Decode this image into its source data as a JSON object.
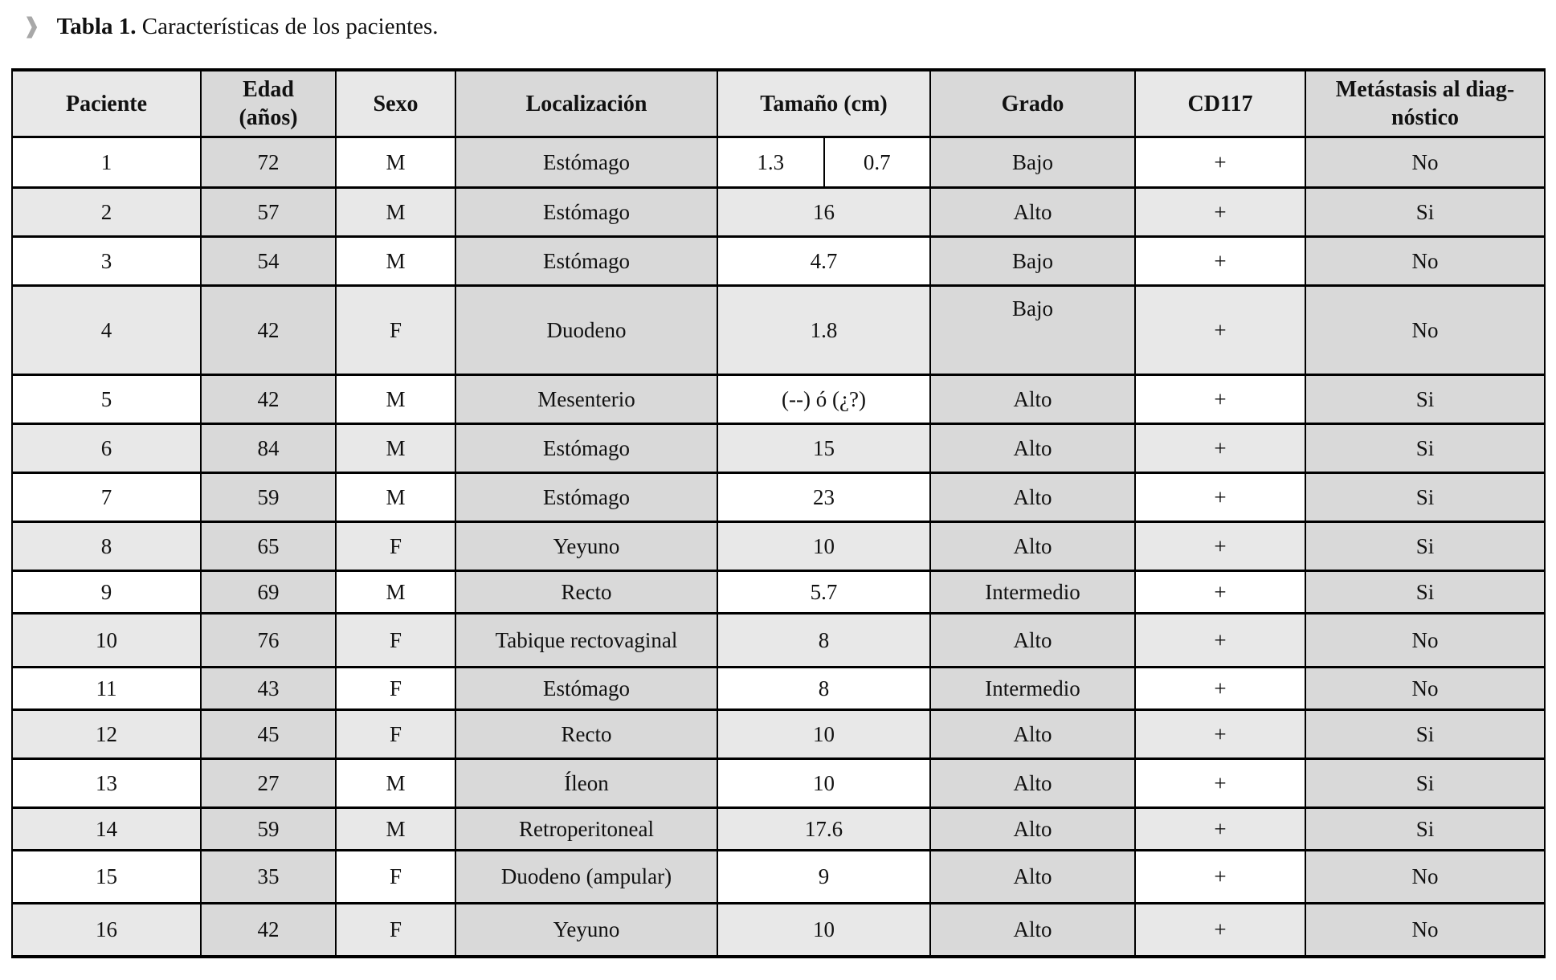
{
  "caption": {
    "marker_icon": "❱",
    "bold": "Tabla 1.",
    "text": "Características de los pacientes."
  },
  "colors": {
    "shaded_column": "#d9d9d9",
    "alt_row": "#e8e8e8",
    "plain_row": "#ffffff",
    "border": "#000000",
    "caption_marker": "#a8a8a8"
  },
  "table": {
    "headers": [
      {
        "key": "paciente",
        "lines": [
          "Paciente"
        ]
      },
      {
        "key": "edad",
        "lines": [
          "Edad",
          "(años)"
        ]
      },
      {
        "key": "sexo",
        "lines": [
          "Sexo"
        ]
      },
      {
        "key": "localizacion",
        "lines": [
          "Localización"
        ]
      },
      {
        "key": "tamano",
        "lines": [
          "Tamaño (cm)"
        ]
      },
      {
        "key": "grado",
        "lines": [
          "Grado"
        ]
      },
      {
        "key": "cd117",
        "lines": [
          "CD117"
        ]
      },
      {
        "key": "metastasis",
        "lines": [
          "Metástasis al diag-",
          "nóstico"
        ]
      }
    ],
    "rows": [
      {
        "paciente": "1",
        "edad": "72",
        "sexo": "M",
        "localizacion": "Estómago",
        "tamano_split": [
          "1.3",
          "0.7"
        ],
        "grado": "Bajo",
        "cd117": "+",
        "metastasis": "No"
      },
      {
        "paciente": "2",
        "edad": "57",
        "sexo": "M",
        "localizacion": "Estómago",
        "tamano": "16",
        "grado": "Alto",
        "cd117": "+",
        "metastasis": "Si"
      },
      {
        "paciente": "3",
        "edad": "54",
        "sexo": "M",
        "localizacion": "Estómago",
        "tamano": "4.7",
        "grado": "Bajo",
        "cd117": "+",
        "metastasis": "No"
      },
      {
        "paciente": "4",
        "edad": "42",
        "sexo": "F",
        "localizacion": "Duodeno",
        "tamano": "1.8",
        "grado": "Bajo",
        "grado_valign": "top",
        "cd117": "+",
        "metastasis": "No"
      },
      {
        "paciente": "5",
        "edad": "42",
        "sexo": "M",
        "localizacion": "Mesenterio",
        "tamano": "(--) ó (¿?)",
        "grado": "Alto",
        "cd117": "+",
        "metastasis": "Si"
      },
      {
        "paciente": "6",
        "edad": "84",
        "sexo": "M",
        "localizacion": "Estómago",
        "tamano": "15",
        "grado": "Alto",
        "cd117": "+",
        "metastasis": "Si"
      },
      {
        "paciente": "7",
        "edad": "59",
        "sexo": "M",
        "localizacion": "Estómago",
        "tamano": "23",
        "grado": "Alto",
        "cd117": "+",
        "metastasis": "Si"
      },
      {
        "paciente": "8",
        "edad": "65",
        "sexo": "F",
        "localizacion": "Yeyuno",
        "tamano": "10",
        "grado": "Alto",
        "cd117": "+",
        "metastasis": "Si"
      },
      {
        "paciente": "9",
        "edad": "69",
        "sexo": "M",
        "localizacion": "Recto",
        "tamano": "5.7",
        "grado": "Intermedio",
        "cd117": "+",
        "metastasis": "Si"
      },
      {
        "paciente": "10",
        "edad": "76",
        "sexo": "F",
        "localizacion": "Tabique rectovaginal",
        "tamano": "8",
        "grado": "Alto",
        "cd117": "+",
        "metastasis": "No"
      },
      {
        "paciente": "11",
        "edad": "43",
        "sexo": "F",
        "localizacion": "Estómago",
        "tamano": "8",
        "grado": "Intermedio",
        "cd117": "+",
        "metastasis": "No"
      },
      {
        "paciente": "12",
        "edad": "45",
        "sexo": "F",
        "localizacion": "Recto",
        "tamano": "10",
        "grado": "Alto",
        "cd117": "+",
        "metastasis": "Si"
      },
      {
        "paciente": "13",
        "edad": "27",
        "sexo": "M",
        "localizacion": "Íleon",
        "tamano": "10",
        "grado": "Alto",
        "cd117": "+",
        "metastasis": "Si"
      },
      {
        "paciente": "14",
        "edad": "59",
        "sexo": "M",
        "localizacion": "Retroperitoneal",
        "tamano": "17.6",
        "grado": "Alto",
        "cd117": "+",
        "metastasis": "Si"
      },
      {
        "paciente": "15",
        "edad": "35",
        "sexo": "F",
        "localizacion": "Duodeno (ampular)",
        "tamano": "9",
        "grado": "Alto",
        "cd117": "+",
        "metastasis": "No"
      },
      {
        "paciente": "16",
        "edad": "42",
        "sexo": "F",
        "localizacion": "Yeyuno",
        "tamano": "10",
        "grado": "Alto",
        "cd117": "+",
        "metastasis": "No"
      }
    ]
  }
}
